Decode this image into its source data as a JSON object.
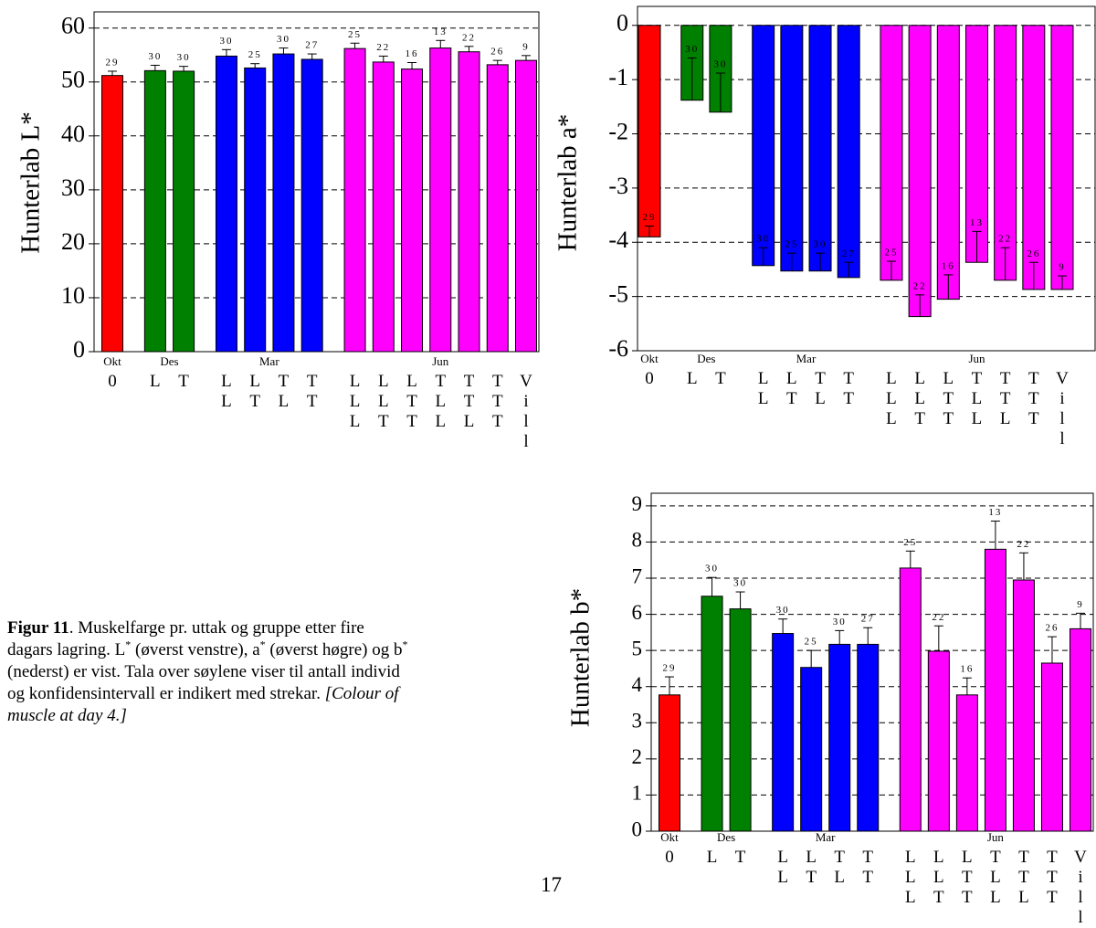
{
  "chart_data": [
    {
      "type": "bar",
      "y_label": "Hunterlab L*",
      "ylim": [
        0,
        63
      ],
      "yticks": [
        0,
        10,
        20,
        30,
        40,
        50,
        60
      ],
      "grid": true,
      "groups": [
        {
          "label": "Okt",
          "color": "#ff0000",
          "categories": [
            "0"
          ]
        },
        {
          "label": "Des",
          "color": "#008000",
          "categories": [
            "L",
            "T"
          ]
        },
        {
          "label": "Mar",
          "color": "#0000ff",
          "categories": [
            "LL",
            "LT",
            "TL",
            "TT"
          ]
        },
        {
          "label": "Jun",
          "color": "#ff00ff",
          "categories": [
            "LLL",
            "LLT",
            "LTT",
            "TLL",
            "TTL",
            "TTT",
            "Vill"
          ]
        }
      ],
      "values": [
        51.2,
        52.1,
        52.0,
        54.8,
        52.6,
        55.2,
        54.2,
        56.2,
        53.7,
        52.4,
        56.3,
        55.6,
        53.2,
        54.0
      ],
      "errors": [
        0.8,
        1.0,
        0.9,
        1.2,
        0.8,
        1.1,
        1.0,
        1.0,
        1.1,
        1.2,
        1.4,
        1.0,
        0.8,
        0.9
      ],
      "counts": [
        29,
        30,
        30,
        30,
        25,
        30,
        27,
        25,
        22,
        16,
        13,
        22,
        26,
        9
      ]
    },
    {
      "type": "bar",
      "y_label": "Hunterlab a*",
      "ylim": [
        -6,
        0.35
      ],
      "yticks": [
        -6,
        -5,
        -4,
        -3,
        -2,
        -1,
        0
      ],
      "grid": true,
      "groups": [
        {
          "label": "Okt",
          "color": "#ff0000",
          "categories": [
            "0"
          ]
        },
        {
          "label": "Des",
          "color": "#008000",
          "categories": [
            "L",
            "T"
          ]
        },
        {
          "label": "Mar",
          "color": "#0000ff",
          "categories": [
            "LL",
            "LT",
            "TL",
            "TT"
          ]
        },
        {
          "label": "Jun",
          "color": "#ff00ff",
          "categories": [
            "LLL",
            "LLT",
            "LTT",
            "TLL",
            "TTL",
            "TTT",
            "Vill"
          ]
        }
      ],
      "values": [
        -3.9,
        -1.38,
        -1.6,
        -4.43,
        -4.53,
        -4.53,
        -4.65,
        -4.7,
        -5.37,
        -5.05,
        -4.37,
        -4.7,
        -4.87,
        -4.87
      ],
      "errors": [
        0.2,
        0.78,
        0.72,
        0.33,
        0.33,
        0.33,
        0.28,
        0.35,
        0.4,
        0.45,
        0.57,
        0.6,
        0.5,
        0.25
      ],
      "counts": [
        29,
        30,
        30,
        30,
        25,
        30,
        27,
        25,
        22,
        16,
        13,
        22,
        26,
        9
      ]
    },
    {
      "type": "bar",
      "y_label": "Hunterlab b*",
      "ylim": [
        0,
        9.35
      ],
      "yticks": [
        0,
        1,
        2,
        3,
        4,
        5,
        6,
        7,
        8,
        9
      ],
      "grid": true,
      "groups": [
        {
          "label": "Okt",
          "color": "#ff0000",
          "categories": [
            "0"
          ]
        },
        {
          "label": "Des",
          "color": "#008000",
          "categories": [
            "L",
            "T"
          ]
        },
        {
          "label": "Mar",
          "color": "#0000ff",
          "categories": [
            "LL",
            "LT",
            "TL",
            "TT"
          ]
        },
        {
          "label": "Jun",
          "color": "#ff00ff",
          "categories": [
            "LLL",
            "LLT",
            "LTT",
            "TLL",
            "TTL",
            "TTT",
            "Vill"
          ]
        }
      ],
      "values": [
        3.77,
        6.5,
        6.15,
        5.47,
        4.53,
        5.17,
        5.17,
        7.28,
        4.98,
        3.77,
        7.8,
        6.95,
        4.65,
        5.6
      ],
      "errors": [
        0.5,
        0.52,
        0.47,
        0.4,
        0.47,
        0.38,
        0.46,
        0.47,
        0.7,
        0.47,
        0.78,
        0.75,
        0.73,
        0.43
      ],
      "counts": [
        29,
        30,
        30,
        30,
        25,
        30,
        27,
        25,
        22,
        16,
        13,
        22,
        26,
        9
      ]
    }
  ],
  "caption": {
    "label": "Figur 11",
    "parts": [
      ". Muskelfarge pr. uttak og gruppe etter fire dagars lagring. L",
      "*",
      " (øverst venstre), a",
      "*",
      " (øverst høgre) og b",
      "*",
      " (nederst) er vist. Tala over søylene viser til antall individ og konfidensintervall er indikert med strekar. "
    ],
    "note": "[Colour of muscle at day 4.]"
  },
  "page_number": "17"
}
